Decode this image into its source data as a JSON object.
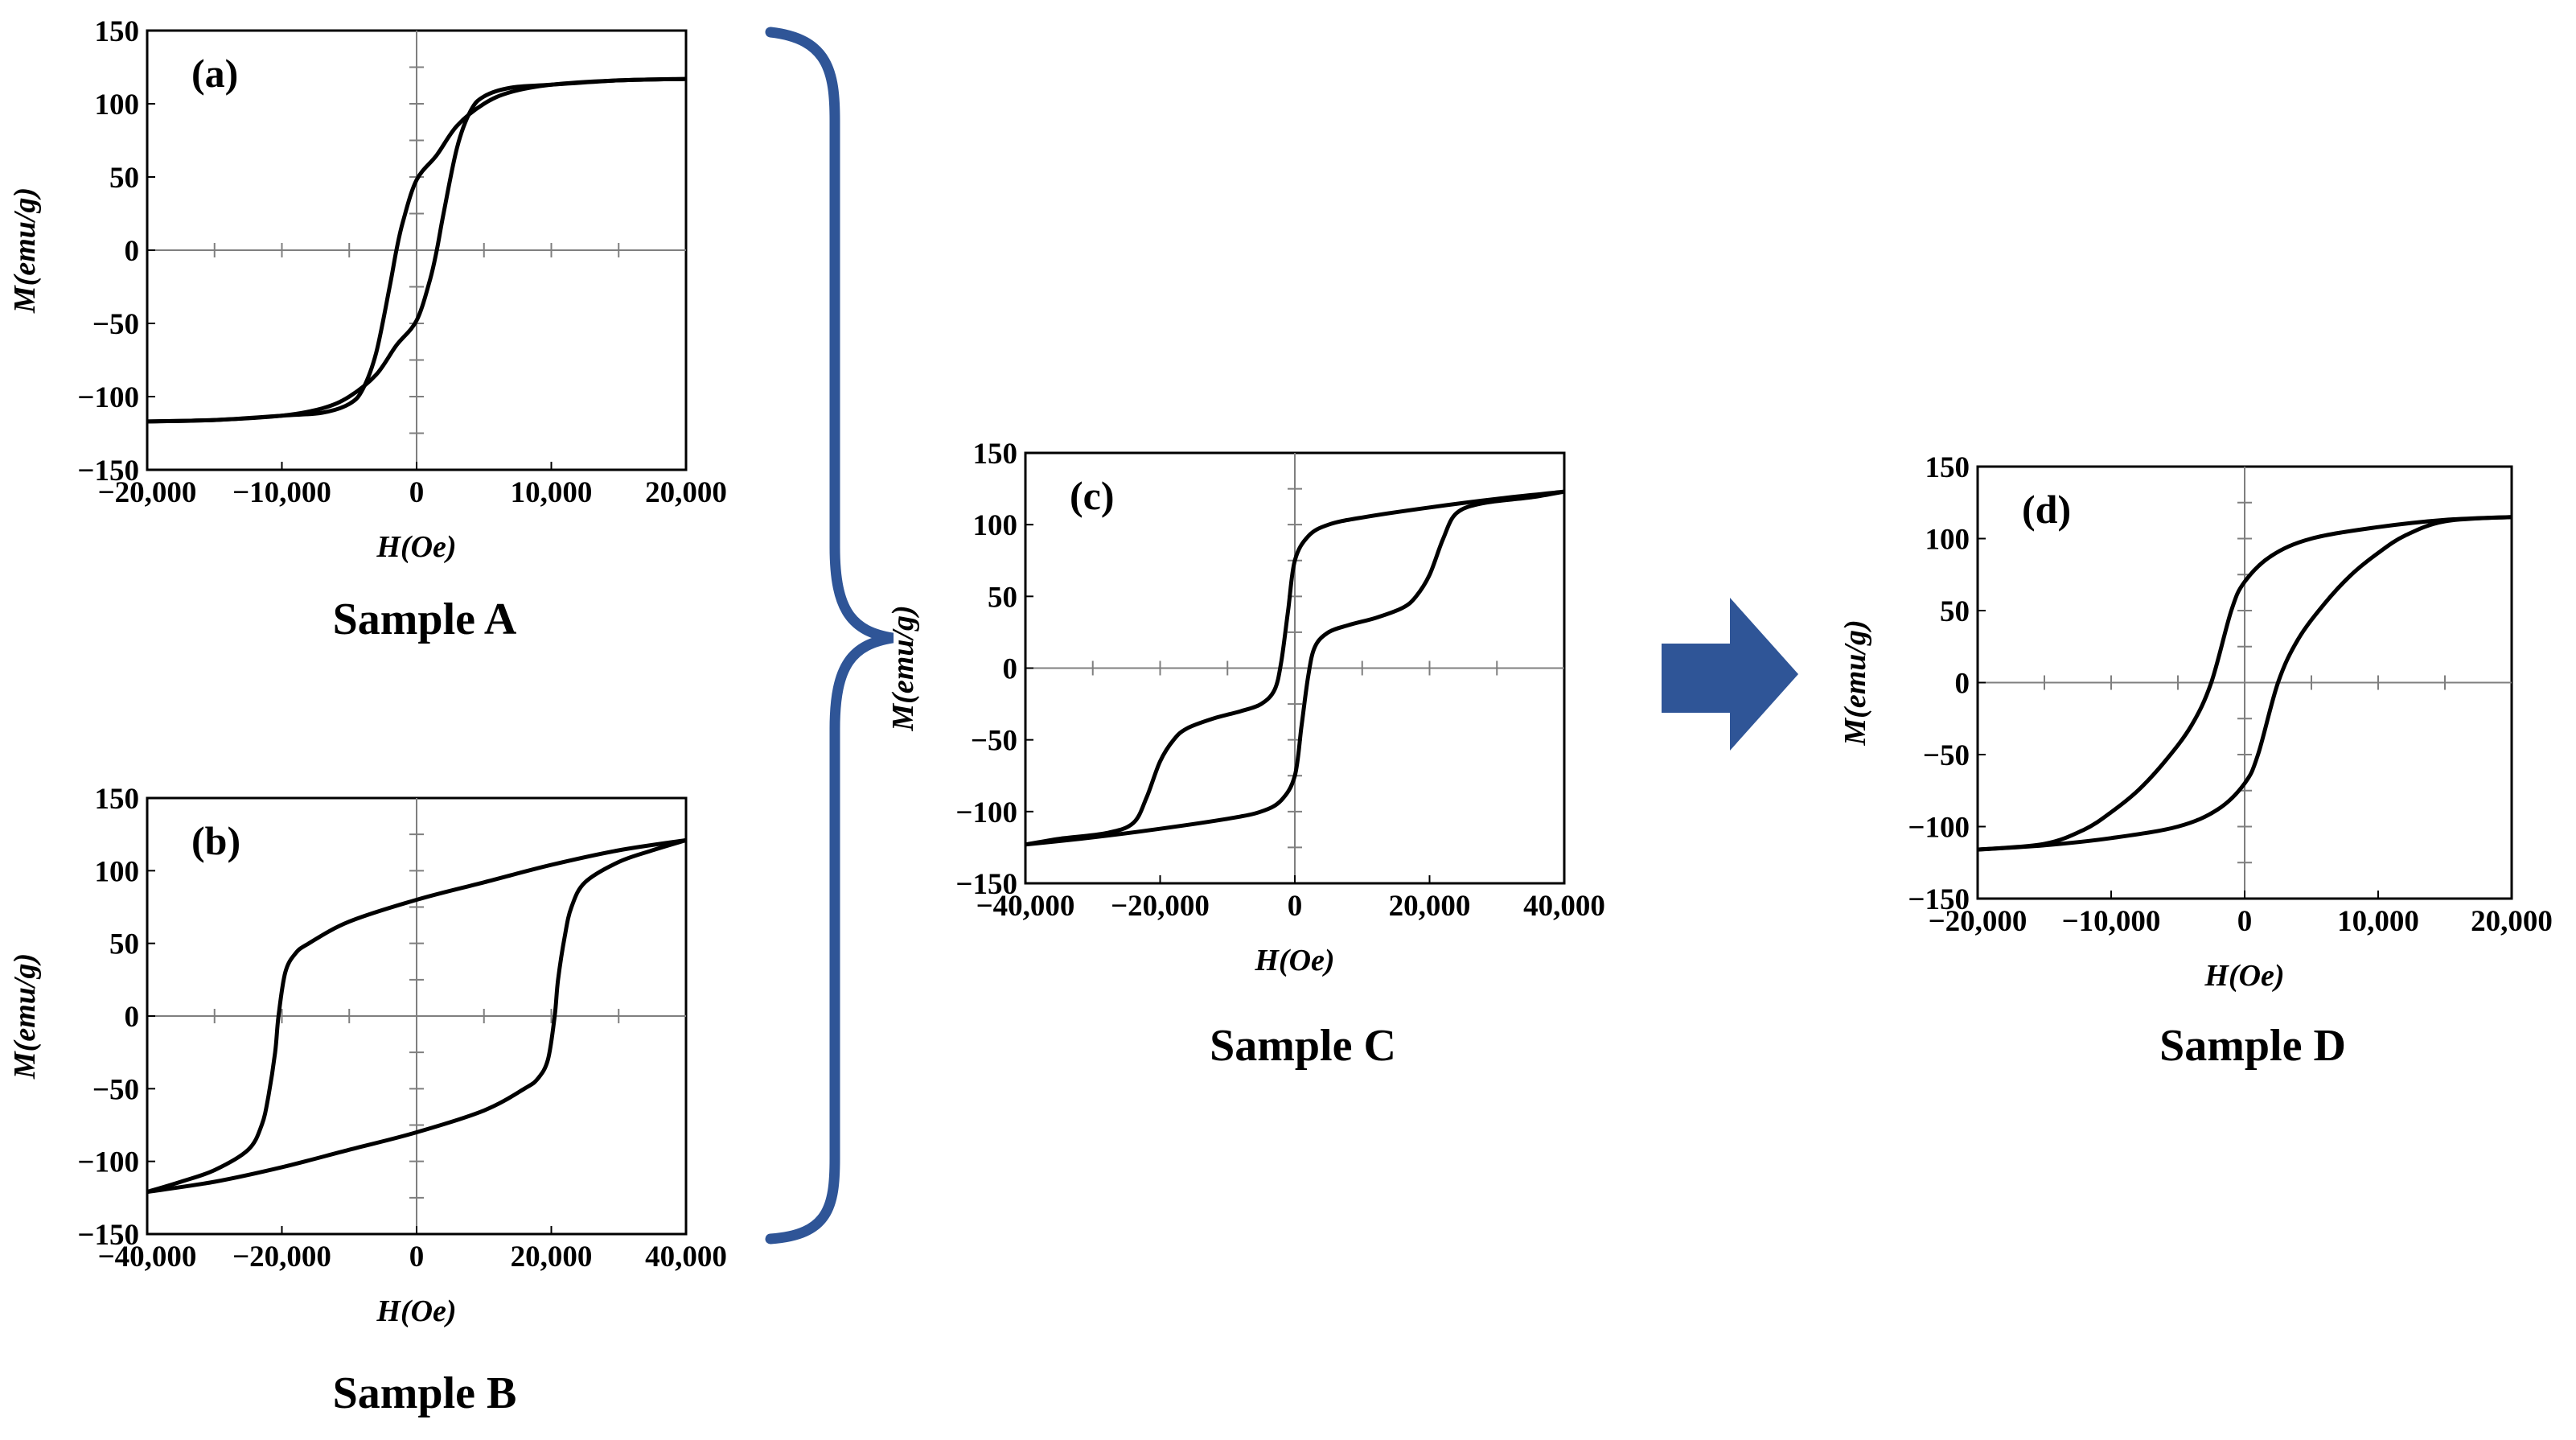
{
  "colors": {
    "curve": "#000000",
    "axes": "#000000",
    "crosshair": "#7f7f7f",
    "brace": "#2f5597",
    "arrow": "#2f5597",
    "background": "#ffffff"
  },
  "icons": {
    "brace": "right-curly-brace-icon",
    "arrow": "right-arrow-icon"
  },
  "chart_data": [
    {
      "id": "a",
      "type": "line",
      "panel_label": "(a)",
      "caption": "Sample A",
      "xlabel": "H(Oe)",
      "ylabel": "M(emu/g)",
      "xlim": [
        -20000,
        20000
      ],
      "ylim": [
        -150,
        150
      ],
      "xticks": [
        -20000,
        -10000,
        0,
        10000,
        20000
      ],
      "xtick_labels": [
        "−20,000",
        "−10,000",
        "0",
        "10,000",
        "20,000"
      ],
      "yticks": [
        150,
        100,
        50,
        0,
        -50,
        -100,
        -150
      ],
      "ytick_labels": [
        "150",
        "100",
        "50",
        "0",
        "−50",
        "−100",
        "−150"
      ],
      "grid": false,
      "series": [
        {
          "branch": "descending",
          "x": [
            20000,
            15000,
            10000,
            7000,
            5000,
            3000,
            1500,
            0,
            -1000,
            -1500,
            -2000,
            -3000,
            -4000,
            -5000,
            -7000,
            -10000,
            -15000,
            -20000
          ],
          "y": [
            117,
            116,
            113,
            108,
            100,
            85,
            65,
            48,
            20,
            0,
            -25,
            -70,
            -95,
            -105,
            -111,
            -113,
            -116,
            -117
          ]
        },
        {
          "branch": "ascending",
          "x": [
            -20000,
            -15000,
            -10000,
            -7000,
            -5000,
            -3000,
            -1500,
            0,
            1000,
            1500,
            2000,
            3000,
            4000,
            5000,
            7000,
            10000,
            15000,
            20000
          ],
          "y": [
            -117,
            -116,
            -113,
            -108,
            -100,
            -85,
            -65,
            -48,
            -20,
            0,
            25,
            70,
            95,
            105,
            111,
            113,
            116,
            117
          ]
        }
      ]
    },
    {
      "id": "b",
      "type": "line",
      "panel_label": "(b)",
      "caption": "Sample B",
      "xlabel": "H(Oe)",
      "ylabel": "M(emu/g)",
      "xlim": [
        -40000,
        40000
      ],
      "ylim": [
        -150,
        150
      ],
      "xticks": [
        -40000,
        -20000,
        0,
        20000,
        40000
      ],
      "xtick_labels": [
        "−40,000",
        "−20,000",
        "0",
        "20,000",
        "40,000"
      ],
      "yticks": [
        150,
        100,
        50,
        0,
        -50,
        -100,
        -150
      ],
      "ytick_labels": [
        "150",
        "100",
        "50",
        "0",
        "−50",
        "−100",
        "−150"
      ],
      "grid": false,
      "series": [
        {
          "branch": "descending",
          "x": [
            40000,
            30000,
            20000,
            10000,
            0,
            -10000,
            -16000,
            -18000,
            -19500,
            -20500,
            -21000,
            -22000,
            -23000,
            -25000,
            -30000,
            -35000,
            -40000
          ],
          "y": [
            121,
            114,
            104,
            92,
            80,
            65,
            50,
            43,
            30,
            0,
            -25,
            -55,
            -75,
            -92,
            -106,
            -114,
            -121
          ]
        },
        {
          "branch": "ascending",
          "x": [
            -40000,
            -30000,
            -20000,
            -10000,
            0,
            10000,
            16000,
            18000,
            19500,
            20500,
            21000,
            22000,
            23000,
            25000,
            30000,
            35000,
            40000
          ],
          "y": [
            -121,
            -114,
            -104,
            -92,
            -80,
            -65,
            -50,
            -43,
            -30,
            0,
            25,
            55,
            75,
            92,
            106,
            114,
            121
          ]
        }
      ]
    },
    {
      "id": "c",
      "type": "line",
      "panel_label": "(c)",
      "caption": "Sample C",
      "xlabel": "H(Oe)",
      "ylabel": "M(emu/g)",
      "xlim": [
        -40000,
        40000
      ],
      "ylim": [
        -150,
        150
      ],
      "xticks": [
        -40000,
        -20000,
        0,
        20000,
        40000
      ],
      "xtick_labels": [
        "−40,000",
        "−20,000",
        "0",
        "20,000",
        "40,000"
      ],
      "yticks": [
        150,
        100,
        50,
        0,
        -50,
        -100,
        -150
      ],
      "ytick_labels": [
        "150",
        "100",
        "50",
        "0",
        "−50",
        "−100",
        "−150"
      ],
      "grid": false,
      "series": [
        {
          "branch": "descending",
          "x": [
            40000,
            30000,
            20000,
            10000,
            5000,
            2000,
            0,
            -1000,
            -2000,
            -3000,
            -5000,
            -8000,
            -12000,
            -16000,
            -18000,
            -20000,
            -22000,
            -24000,
            -28000,
            -35000,
            -40000
          ],
          "y": [
            123,
            118,
            112,
            105,
            100,
            92,
            75,
            40,
            5,
            -15,
            -25,
            -30,
            -35,
            -42,
            -50,
            -65,
            -90,
            -108,
            -115,
            -119,
            -123
          ]
        },
        {
          "branch": "ascending",
          "x": [
            -40000,
            -30000,
            -20000,
            -10000,
            -5000,
            -2000,
            0,
            1000,
            2000,
            3000,
            5000,
            8000,
            12000,
            16000,
            18000,
            20000,
            22000,
            24000,
            28000,
            35000,
            40000
          ],
          "y": [
            -123,
            -118,
            -112,
            -105,
            -100,
            -92,
            -75,
            -40,
            -5,
            15,
            25,
            30,
            35,
            42,
            50,
            65,
            90,
            108,
            115,
            119,
            123
          ]
        }
      ]
    },
    {
      "id": "d",
      "type": "line",
      "panel_label": "(d)",
      "caption": "Sample D",
      "xlabel": "H(Oe)",
      "ylabel": "M(emu/g)",
      "xlim": [
        -20000,
        20000
      ],
      "ylim": [
        -150,
        150
      ],
      "xticks": [
        -20000,
        -10000,
        0,
        10000,
        20000
      ],
      "xtick_labels": [
        "−20,000",
        "−10,000",
        "0",
        "10,000",
        "20,000"
      ],
      "yticks": [
        150,
        100,
        50,
        0,
        -50,
        -100,
        -150
      ],
      "ytick_labels": [
        "150",
        "100",
        "50",
        "0",
        "−50",
        "−100",
        "−150"
      ],
      "grid": false,
      "series": [
        {
          "branch": "descending",
          "x": [
            20000,
            15000,
            10000,
            5000,
            2000,
            0,
            -1000,
            -2500,
            -4000,
            -6000,
            -8000,
            -10000,
            -12000,
            -15000,
            -20000
          ],
          "y": [
            115,
            113,
            108,
            100,
            88,
            70,
            50,
            0,
            -30,
            -55,
            -75,
            -90,
            -102,
            -112,
            -116
          ]
        },
        {
          "branch": "ascending",
          "x": [
            -20000,
            -15000,
            -10000,
            -5000,
            -2000,
            0,
            1000,
            2500,
            4000,
            6000,
            8000,
            10000,
            12000,
            15000,
            20000
          ],
          "y": [
            -116,
            -113,
            -108,
            -100,
            -88,
            -70,
            -50,
            0,
            30,
            55,
            75,
            90,
            102,
            112,
            115
          ]
        }
      ]
    }
  ]
}
